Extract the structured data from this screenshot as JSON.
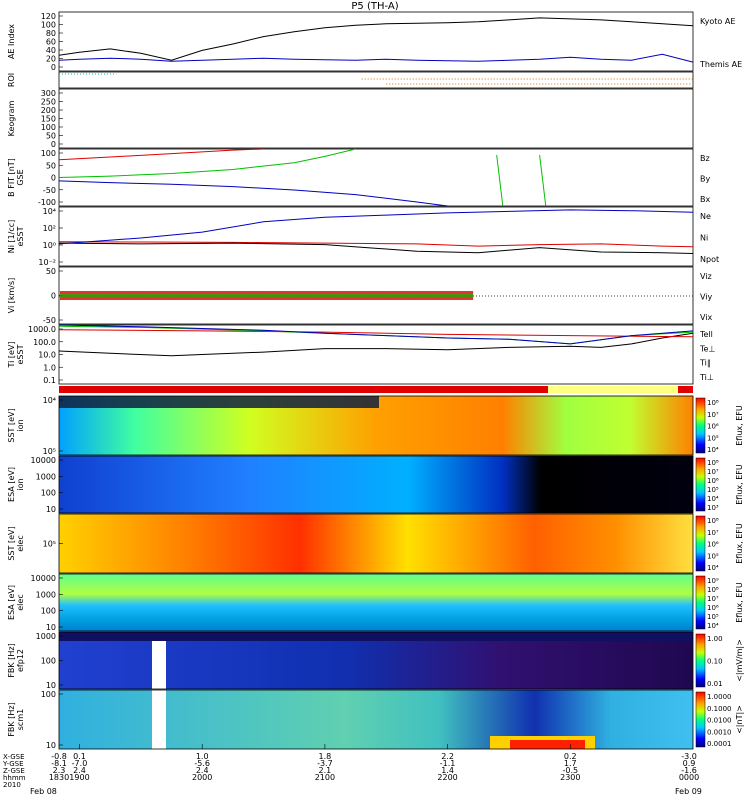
{
  "title": "P5 (TH-A)",
  "colors": {
    "red": "#e00000",
    "green": "#00c000",
    "blue": "#0000c0",
    "black": "#000000",
    "orange": "#d07000"
  },
  "chart_data": {
    "type": "line",
    "x_range_hours": [
      18.833,
      24.0
    ],
    "x_ticks": [
      {
        "pos": "1900",
        "xgse": "0.1",
        "ygse": "-7.0",
        "zgse": "2.4",
        "hhmm": "1900"
      },
      {
        "pos": "2000",
        "xgse": "1.0",
        "ygse": "-5.6",
        "zgse": "2.4",
        "hhmm": "2000"
      },
      {
        "pos": "2100",
        "xgse": "1.8",
        "ygse": "-3.7",
        "zgse": "2.1",
        "hhmm": "2100"
      },
      {
        "pos": "2200",
        "xgse": "2.2",
        "ygse": "-1.1",
        "zgse": "1.4",
        "hhmm": "2200"
      },
      {
        "pos": "2300",
        "xgse": "0.2",
        "ygse": "1.7",
        "zgse": "-0.5",
        "hhmm": "2300"
      }
    ],
    "x_start": {
      "xgse": "-0.8",
      "ygse": "-8.1",
      "zgse": "2.3",
      "hhmm": "1830"
    },
    "x_end": {
      "xgse": "-3.0",
      "ygse": "0.9",
      "zgse": "-1.6",
      "hhmm": "0000"
    },
    "x_row_labels": [
      "X-GSE",
      "Y-GSE",
      "Z-GSE",
      "hhmm",
      "2010"
    ],
    "x_date_start": "Feb 08",
    "x_date_end": "Feb 09",
    "panels": [
      {
        "id": "ae",
        "ylabel": "AE Index",
        "yticks": [
          "0",
          "20",
          "40",
          "60",
          "80",
          "100",
          "120"
        ],
        "ylim": [
          0,
          120
        ],
        "legend": [
          "Kyoto AE",
          "Themis AE"
        ],
        "series": [
          {
            "name": "Kyoto AE",
            "color": "#000000",
            "x": [
              18.833,
              19.0,
              19.25,
              19.5,
              19.75,
              20.0,
              20.25,
              20.5,
              20.75,
              21.0,
              21.25,
              21.5,
              21.75,
              22.0,
              22.25,
              22.5,
              22.75,
              23.0,
              23.25,
              23.5,
              23.75,
              24.0
            ],
            "y": [
              32,
              38,
              45,
              36,
              22,
              42,
              55,
              70,
              80,
              88,
              93,
              96,
              97,
              98,
              100,
              104,
              108,
              106,
              104,
              100,
              96,
              92
            ]
          },
          {
            "name": "Themis AE",
            "color": "#0000c0",
            "x": [
              18.833,
              19.0,
              19.25,
              19.5,
              19.75,
              20.0,
              20.25,
              20.5,
              20.75,
              21.0,
              21.25,
              21.5,
              21.75,
              22.0,
              22.25,
              22.5,
              22.75,
              23.0,
              23.25,
              23.5,
              23.75,
              24.0
            ],
            "y": [
              22,
              24,
              26,
              24,
              20,
              22,
              24,
              26,
              24,
              23,
              22,
              24,
              22,
              21,
              20,
              22,
              24,
              28,
              24,
              22,
              34,
              18
            ]
          }
        ]
      },
      {
        "id": "roi",
        "ylabel": "ROI"
      },
      {
        "id": "keogram",
        "ylabel": "Keogram",
        "yticks": [
          "0",
          "50",
          "100",
          "150",
          "200",
          "250",
          "300"
        ],
        "ylim": [
          0,
          300
        ]
      },
      {
        "id": "bfield",
        "ylabel": "B FIT [nT]",
        "ylabel2": "GSE",
        "yticks": [
          "-100",
          "-50",
          "0",
          "50",
          "100"
        ],
        "ylim": [
          -100,
          100
        ],
        "legend": [
          "Bz",
          "By",
          "Bx"
        ],
        "series": [
          {
            "name": "Bz",
            "color": "#e00000",
            "x": [
              18.833,
              19.25,
              19.75,
              20.25,
              20.5
            ],
            "y": [
              62,
              72,
              84,
              96,
              100
            ]
          },
          {
            "name": "By",
            "color": "#00c000",
            "x": [
              18.833,
              19.25,
              19.75,
              20.25,
              20.75,
              21.0,
              21.25
            ],
            "y": [
              0,
              5,
              14,
              28,
              52,
              74,
              100
            ]
          },
          {
            "name": "Bx",
            "color": "#0000c0",
            "x": [
              18.833,
              19.25,
              19.75,
              20.25,
              20.75,
              21.25,
              21.75,
              22.0
            ],
            "y": [
              -12,
              -18,
              -24,
              -32,
              -44,
              -60,
              -86,
              -100
            ]
          }
        ]
      },
      {
        "id": "density",
        "ylabel": "Ni [1/cc]",
        "ylabel2": "eSST",
        "yticks": [
          "10⁻²",
          "10⁰",
          "10²",
          "10⁴"
        ],
        "ylim_log": [
          -3,
          5
        ],
        "legend": [
          "Ne",
          "Ni",
          "Npot"
        ],
        "series": [
          {
            "name": "Ne",
            "color": "#e00000",
            "x": [
              18.833,
              19.5,
              20.25,
              21.0,
              21.75,
              22.25,
              22.75,
              23.25,
              23.75,
              24.0
            ],
            "y": [
              0.3,
              0.25,
              0.2,
              0.1,
              0.0,
              -0.3,
              -0.1,
              0.0,
              -0.3,
              -0.4
            ]
          },
          {
            "name": "Ni",
            "color": "#000000",
            "x": [
              18.833,
              19.5,
              20.25,
              21.0,
              21.75,
              22.25,
              22.75,
              23.25,
              23.75,
              24.0
            ],
            "y": [
              0.1,
              0.0,
              0.1,
              -0.1,
              -1.0,
              -1.2,
              -0.5,
              -1.1,
              -1.2,
              -1.3
            ]
          },
          {
            "name": "Npot",
            "color": "#0000c0",
            "x": [
              18.833,
              19.5,
              20.0,
              20.5,
              21.0,
              21.5,
              22.0,
              22.5,
              23.0,
              23.5,
              24.0
            ],
            "y": [
              0.0,
              0.8,
              1.6,
              3.0,
              3.6,
              3.9,
              4.2,
              4.4,
              4.6,
              4.5,
              4.3
            ]
          }
        ]
      },
      {
        "id": "velocity",
        "ylabel": "Vi [km/s]",
        "yticks": [
          "-50",
          "0",
          "50"
        ],
        "ylim": [
          -75,
          75
        ],
        "legend": [
          "Viz",
          "Viy",
          "Vix"
        ]
      },
      {
        "id": "temp",
        "ylabel": "Ti [eV]",
        "ylabel2": "eSST",
        "yticks": [
          "0.1",
          "1.0",
          "10.0",
          "100.0",
          "1000.0"
        ],
        "ylim_log": [
          -1.5,
          3.5
        ],
        "legend": [
          "Tell",
          "Te⊥",
          "Ti∥",
          "Ti⊥"
        ],
        "series": [
          {
            "name": "Tell",
            "color": "#000000",
            "x": [
              18.833,
              19.25,
              19.75,
              20.0,
              20.5,
              21.0,
              21.5,
              22.0,
              22.5,
              23.0,
              23.25,
              23.5,
              23.75,
              24.0
            ],
            "y": [
              1.3,
              1.1,
              0.9,
              1.0,
              1.2,
              1.5,
              1.5,
              1.4,
              1.6,
              1.7,
              1.6,
              1.9,
              2.4,
              2.8
            ]
          },
          {
            "name": "Te⊥",
            "color": "#e00000",
            "x": [
              18.833,
              20.0,
              21.0,
              22.0,
              23.0,
              24.0
            ],
            "y": [
              3.1,
              3.0,
              2.9,
              2.7,
              2.6,
              2.5
            ]
          },
          {
            "name": "Ti∥",
            "color": "#00c000",
            "x": [
              18.833,
              19.5,
              20.5,
              21.0,
              21.5,
              22.0,
              22.5,
              23.0,
              23.5,
              24.0
            ],
            "y": [
              3.4,
              3.3,
              3.0,
              2.8,
              2.6,
              2.4,
              2.3,
              1.9,
              2.6,
              2.9
            ]
          },
          {
            "name": "Ti⊥",
            "color": "#0000c0",
            "x": [
              18.833,
              19.5,
              20.5,
              21.0,
              21.5,
              22.0,
              22.5,
              23.0,
              23.5,
              24.0
            ],
            "y": [
              3.5,
              3.35,
              3.05,
              2.8,
              2.6,
              2.4,
              2.3,
              1.9,
              2.6,
              3.0
            ]
          }
        ]
      },
      {
        "id": "ispec_sst",
        "ylabel": "SST [eV]",
        "ylabel2": "ion",
        "yticks": [
          "10⁵",
          "10⁴"
        ],
        "zlabel": "Eflux, EFU",
        "zticks": [
          "10⁸",
          "10⁷",
          "10⁶",
          "10⁵",
          "10⁴"
        ]
      },
      {
        "id": "ispec_esa",
        "ylabel": "ESA [eV]",
        "ylabel2": "ion",
        "yticks": [
          "10",
          "100",
          "1000",
          "10000"
        ],
        "zlabel": "Eflux, EFU",
        "zticks": [
          "10⁸",
          "10⁷",
          "10⁶",
          "10⁵",
          "10⁴",
          "10³"
        ]
      },
      {
        "id": "espec_sst",
        "ylabel": "SST [eV]",
        "ylabel2": "elec",
        "yticks": [
          "10⁵"
        ],
        "zlabel": "Eflux, EFU",
        "zticks": [
          "10⁸",
          "10⁷",
          "10⁶",
          "10⁵",
          "10⁴"
        ]
      },
      {
        "id": "espec_esa",
        "ylabel": "ESA [eV]",
        "ylabel2": "elec",
        "yticks": [
          "10",
          "100",
          "1000",
          "10000"
        ],
        "zlabel": "Eflux, EFU",
        "zticks": [
          "10⁹",
          "10⁸",
          "10⁷",
          "10⁶",
          "10⁵",
          "10⁴"
        ]
      },
      {
        "id": "fbk_e",
        "ylabel": "FBK [Hz]",
        "ylabel2": "efp12",
        "yticks": [
          "10",
          "100",
          "1000"
        ],
        "zlabel": "<|mV/m|>",
        "zticks": [
          "1.00",
          "0.10",
          "0.01"
        ]
      },
      {
        "id": "fbk_b",
        "ylabel": "FBK [Hz]",
        "ylabel2": "scm1",
        "yticks": [
          "10",
          "100"
        ],
        "zlabel": "<|nT|>",
        "zticks": [
          "1.0000",
          "0.1000",
          "0.0100",
          "0.0010",
          "0.0001"
        ]
      }
    ]
  }
}
